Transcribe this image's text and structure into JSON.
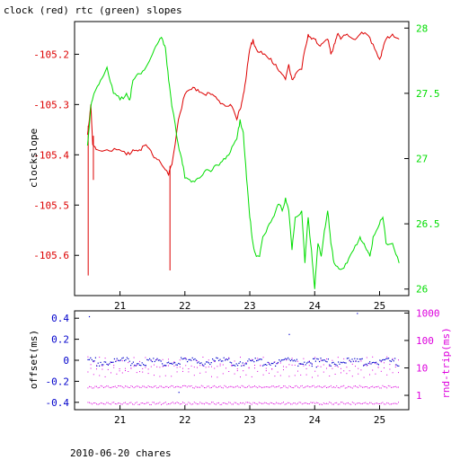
{
  "title": "clock (red) rtc (green) slopes",
  "footer": "2010-06-20 chares",
  "colors": {
    "red": "#dd0000",
    "green": "#00dd00",
    "blue": "#0000cc",
    "magenta": "#dd00dd",
    "axis": "#000000"
  },
  "chart_data": [
    {
      "type": "line",
      "title": "clock (red) rtc (green) slopes",
      "xlabel": "",
      "ylabel": "clockslope",
      "xlim": [
        20.3,
        25.45
      ],
      "ylim": [
        -105.68,
        -105.135
      ],
      "x_ticks": [
        21,
        22,
        23,
        24,
        25
      ],
      "y_ticks": [
        -105.2,
        -105.3,
        -105.4,
        -105.5,
        -105.6
      ],
      "y2lim": [
        25.95,
        28.05
      ],
      "y2_ticks": [
        26,
        26.5,
        27,
        27.5,
        28
      ],
      "grid": false,
      "series": [
        {
          "name": "clock",
          "axis": "left",
          "color": "#dd0000",
          "points": [
            [
              20.5,
              -105.36
            ],
            [
              20.55,
              -105.3
            ],
            [
              20.58,
              -105.38
            ],
            [
              20.65,
              -105.39
            ],
            [
              20.8,
              -105.39
            ],
            [
              20.95,
              -105.39
            ],
            [
              21.1,
              -105.4
            ],
            [
              21.2,
              -105.39
            ],
            [
              21.3,
              -105.39
            ],
            [
              21.4,
              -105.38
            ],
            [
              21.5,
              -105.4
            ],
            [
              21.6,
              -105.41
            ],
            [
              21.7,
              -105.43
            ],
            [
              21.75,
              -105.44
            ],
            [
              21.8,
              -105.42
            ],
            [
              21.9,
              -105.33
            ],
            [
              22.0,
              -105.28
            ],
            [
              22.1,
              -105.27
            ],
            [
              22.2,
              -105.27
            ],
            [
              22.3,
              -105.28
            ],
            [
              22.4,
              -105.28
            ],
            [
              22.5,
              -105.29
            ],
            [
              22.6,
              -105.3
            ],
            [
              22.7,
              -105.3
            ],
            [
              22.8,
              -105.33
            ],
            [
              22.85,
              -105.31
            ],
            [
              22.9,
              -105.28
            ],
            [
              22.95,
              -105.24
            ],
            [
              23.0,
              -105.19
            ],
            [
              23.05,
              -105.17
            ],
            [
              23.1,
              -105.19
            ],
            [
              23.2,
              -105.2
            ],
            [
              23.3,
              -105.21
            ],
            [
              23.4,
              -105.22
            ],
            [
              23.5,
              -105.24
            ],
            [
              23.55,
              -105.25
            ],
            [
              23.6,
              -105.22
            ],
            [
              23.65,
              -105.25
            ],
            [
              23.7,
              -105.24
            ],
            [
              23.8,
              -105.23
            ],
            [
              23.85,
              -105.19
            ],
            [
              23.9,
              -105.16
            ],
            [
              23.95,
              -105.17
            ],
            [
              24.0,
              -105.17
            ],
            [
              24.05,
              -105.18
            ],
            [
              24.1,
              -105.18
            ],
            [
              24.2,
              -105.17
            ],
            [
              24.25,
              -105.2
            ],
            [
              24.3,
              -105.18
            ],
            [
              24.35,
              -105.16
            ],
            [
              24.4,
              -105.17
            ],
            [
              24.5,
              -105.16
            ],
            [
              24.6,
              -105.17
            ],
            [
              24.7,
              -105.16
            ],
            [
              24.8,
              -105.16
            ],
            [
              24.9,
              -105.18
            ],
            [
              25.0,
              -105.21
            ],
            [
              25.05,
              -105.19
            ],
            [
              25.1,
              -105.17
            ],
            [
              25.2,
              -105.16
            ],
            [
              25.3,
              -105.17
            ]
          ],
          "spikes": [
            [
              20.51,
              -105.64
            ],
            [
              20.59,
              -105.45
            ],
            [
              21.77,
              -105.63
            ]
          ]
        },
        {
          "name": "rtc",
          "axis": "right",
          "color": "#00dd00",
          "points": [
            [
              20.5,
              27.1
            ],
            [
              20.55,
              27.4
            ],
            [
              20.6,
              27.5
            ],
            [
              20.7,
              27.6
            ],
            [
              20.8,
              27.7
            ],
            [
              20.9,
              27.5
            ],
            [
              21.0,
              27.45
            ],
            [
              21.1,
              27.5
            ],
            [
              21.15,
              27.45
            ],
            [
              21.2,
              27.6
            ],
            [
              21.3,
              27.65
            ],
            [
              21.4,
              27.7
            ],
            [
              21.5,
              27.8
            ],
            [
              21.6,
              27.9
            ],
            [
              21.65,
              27.92
            ],
            [
              21.7,
              27.85
            ],
            [
              21.75,
              27.6
            ],
            [
              21.8,
              27.4
            ],
            [
              21.9,
              27.1
            ],
            [
              21.95,
              27.0
            ],
            [
              22.0,
              26.85
            ],
            [
              22.1,
              26.82
            ],
            [
              22.2,
              26.85
            ],
            [
              22.3,
              26.9
            ],
            [
              22.4,
              26.9
            ],
            [
              22.5,
              26.95
            ],
            [
              22.6,
              27.0
            ],
            [
              22.7,
              27.05
            ],
            [
              22.8,
              27.15
            ],
            [
              22.85,
              27.3
            ],
            [
              22.9,
              27.2
            ],
            [
              22.95,
              26.85
            ],
            [
              23.0,
              26.55
            ],
            [
              23.05,
              26.35
            ],
            [
              23.1,
              26.25
            ],
            [
              23.15,
              26.25
            ],
            [
              23.2,
              26.4
            ],
            [
              23.3,
              26.5
            ],
            [
              23.4,
              26.6
            ],
            [
              23.45,
              26.65
            ],
            [
              23.5,
              26.6
            ],
            [
              23.55,
              26.7
            ],
            [
              23.6,
              26.6
            ],
            [
              23.65,
              26.3
            ],
            [
              23.7,
              26.55
            ],
            [
              23.8,
              26.6
            ],
            [
              23.85,
              26.2
            ],
            [
              23.9,
              26.55
            ],
            [
              23.95,
              26.3
            ],
            [
              24.0,
              26.0
            ],
            [
              24.05,
              26.35
            ],
            [
              24.1,
              26.25
            ],
            [
              24.15,
              26.45
            ],
            [
              24.2,
              26.6
            ],
            [
              24.25,
              26.35
            ],
            [
              24.3,
              26.2
            ],
            [
              24.4,
              26.15
            ],
            [
              24.5,
              26.2
            ],
            [
              24.6,
              26.3
            ],
            [
              24.7,
              26.4
            ],
            [
              24.75,
              26.35
            ],
            [
              24.8,
              26.3
            ],
            [
              24.85,
              26.25
            ],
            [
              24.9,
              26.4
            ],
            [
              25.0,
              26.5
            ],
            [
              25.05,
              26.55
            ],
            [
              25.1,
              26.35
            ],
            [
              25.2,
              26.35
            ],
            [
              25.3,
              26.2
            ]
          ]
        }
      ]
    },
    {
      "type": "scatter",
      "xlabel": "",
      "ylabel": "offset(ms)",
      "y2label": "rnd-trip(ms)",
      "xlim": [
        20.3,
        25.45
      ],
      "ylim": [
        -0.47,
        0.47
      ],
      "y_ticks": [
        0.4,
        0.2,
        0,
        -0.2,
        -0.4
      ],
      "y2_scale": "log",
      "y2lim": [
        0.3,
        1200
      ],
      "y2_ticks": [
        1000,
        100,
        10,
        1
      ],
      "x_ticks": [
        21,
        22,
        23,
        24,
        25
      ],
      "grid": false,
      "series": [
        {
          "name": "offset",
          "axis": "left",
          "color": "#0000cc",
          "approx_level": 0.01,
          "scatter_band": 0.02,
          "outliers": [
            [
              20.52,
              0.42
            ],
            [
              21.9,
              -0.3
            ],
            [
              23.6,
              0.25
            ],
            [
              24.65,
              0.45
            ],
            [
              23.95,
              -0.05
            ],
            [
              24.02,
              -0.06
            ]
          ]
        },
        {
          "name": "rnd-trip",
          "axis": "right",
          "color": "#dd00dd",
          "levels": [
            0.5,
            2,
            6,
            12
          ]
        }
      ]
    }
  ]
}
